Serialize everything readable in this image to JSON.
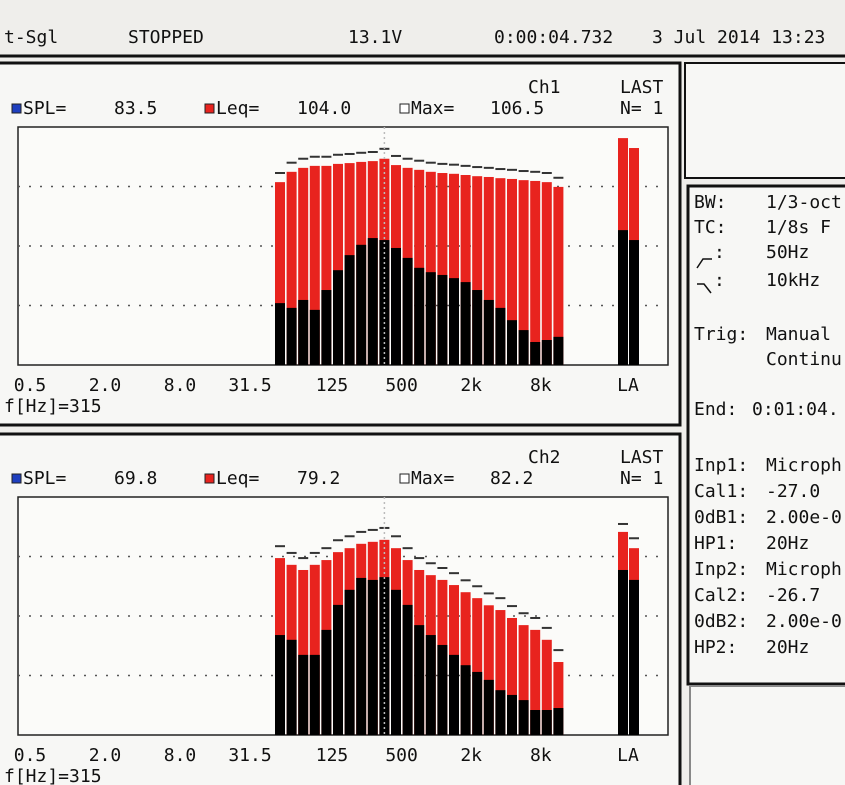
{
  "status_bar": {
    "mode": "t-Sgl",
    "state": "STOPPED",
    "voltage": "13.1V",
    "elapsed": "0:00:04.732",
    "datetime": "3 Jul 2014 13:23"
  },
  "chart_data": [
    {
      "type": "bar",
      "title": "Ch1",
      "status": "LAST",
      "count": "N= 1",
      "cursor": "f[Hz]=315",
      "xtick_labels": [
        "0.5",
        "2.0",
        "8.0",
        "31.5"
      ],
      "categories": [
        null,
        null,
        null,
        null,
        null,
        "125",
        null,
        null,
        null,
        null,
        null,
        "500",
        null,
        null,
        null,
        null,
        null,
        "2k",
        null,
        null,
        null,
        null,
        null,
        "8k",
        null,
        "LA",
        null
      ],
      "series": [
        {
          "name": "SPL=",
          "color": "#000000",
          "marker_color": "#1f3fbf",
          "values": [
            67.6,
            66.4,
            68.4,
            65.9,
            70.9,
            75.9,
            79.7,
            82.3,
            84.0,
            83.5,
            81.5,
            79.0,
            76.5,
            75.4,
            74.7,
            73.9,
            72.9,
            70.9,
            68.4,
            66.4,
            63.3,
            60.8,
            57.8,
            58.3,
            59.1,
            86.0,
            83.5
          ]
        },
        {
          "name": "Leq=",
          "color": "#e8231e",
          "marker_color": "#e8231e",
          "values": [
            98.1,
            100.7,
            101.7,
            102.2,
            102.2,
            102.7,
            102.9,
            103.2,
            103.4,
            104.0,
            102.4,
            101.7,
            101.2,
            100.7,
            100.4,
            100.2,
            99.9,
            99.6,
            99.4,
            99.1,
            98.9,
            98.6,
            98.4,
            98.1,
            96.9,
            109.2,
            106.7
          ]
        },
        {
          "name": "Max=",
          "color": "#333333",
          "marker_color": "#ffffff",
          "values": [
            100.4,
            103.0,
            104.0,
            104.5,
            104.5,
            105.0,
            105.2,
            105.5,
            105.7,
            106.5,
            104.7,
            104.0,
            103.5,
            103.0,
            102.7,
            102.5,
            102.2,
            101.9,
            101.7,
            101.4,
            101.2,
            100.9,
            100.7,
            100.4,
            99.2,
            null,
            null
          ]
        }
      ],
      "readout": [
        "83.5",
        "104.0",
        "106.5"
      ],
      "ylim": [
        52,
        112
      ],
      "grid_lines": [
        67,
        82,
        97
      ]
    },
    {
      "type": "bar",
      "title": "Ch2",
      "status": "LAST",
      "count": "N= 1",
      "cursor": "f[Hz]=315",
      "xtick_labels": [
        "0.5",
        "2.0",
        "8.0",
        "31.5"
      ],
      "categories": [
        null,
        null,
        null,
        null,
        null,
        "125",
        null,
        null,
        null,
        null,
        null,
        "500",
        null,
        null,
        null,
        null,
        null,
        "2k",
        null,
        null,
        null,
        null,
        null,
        "8k",
        null,
        "LA",
        null
      ],
      "series": [
        {
          "name": "SPL=",
          "color": "#000000",
          "marker_color": "#1f3fbf",
          "values": [
            55.2,
            54.0,
            50.2,
            50.2,
            56.5,
            62.8,
            66.6,
            69.6,
            69.1,
            69.8,
            66.6,
            62.8,
            57.7,
            55.2,
            52.7,
            50.2,
            47.6,
            45.9,
            43.9,
            41.3,
            40.1,
            38.8,
            36.3,
            36.3,
            36.8,
            71.6,
            69.1
          ]
        },
        {
          "name": "Leq=",
          "color": "#e8231e",
          "marker_color": "#e8231e",
          "values": [
            74.6,
            72.9,
            71.6,
            72.9,
            74.1,
            76.1,
            77.1,
            78.2,
            78.7,
            79.2,
            77.1,
            74.1,
            71.6,
            70.3,
            69.1,
            67.8,
            66.0,
            64.5,
            62.7,
            61.5,
            59.5,
            57.7,
            56.5,
            54.0,
            48.4,
            81.2,
            77.1
          ]
        },
        {
          "name": "Max=",
          "color": "#333333",
          "marker_color": "#ffffff",
          "values": [
            77.6,
            75.9,
            74.6,
            75.9,
            77.1,
            79.1,
            80.1,
            81.2,
            81.7,
            82.2,
            80.1,
            77.1,
            74.6,
            73.3,
            72.1,
            70.8,
            69.0,
            67.5,
            65.7,
            64.5,
            62.5,
            60.7,
            59.5,
            57.0,
            51.4,
            83.2,
            79.6
          ]
        }
      ],
      "readout": [
        "69.8",
        "79.2",
        "82.2"
      ],
      "ylim": [
        30,
        90
      ],
      "grid_lines": [
        45,
        60,
        75
      ]
    }
  ],
  "info": {
    "rows": [
      {
        "label": "BW:",
        "value": "1/3-oct"
      },
      {
        "label": "TC:",
        "value": "1/8s F"
      },
      {
        "label": ":",
        "value": "50Hz"
      },
      {
        "label": ":",
        "value": "10kHz"
      }
    ],
    "trigger": {
      "label": "Trig:",
      "value": "Manual",
      "mode": "Continu"
    },
    "end": {
      "label": "End:",
      "value": "0:01:04."
    },
    "inputs": [
      {
        "label": "Inp1:",
        "value": "Microph"
      },
      {
        "label": "Cal1:",
        "value": "-27.0"
      },
      {
        "label": "0dB1:",
        "value": "2.00e-0"
      },
      {
        "label": "HP1:",
        "value": "20Hz"
      },
      {
        "label": "Inp2:",
        "value": "Microph"
      },
      {
        "label": "Cal2:",
        "value": "-26.7"
      },
      {
        "label": "0dB2:",
        "value": "2.00e-0"
      },
      {
        "label": "HP2:",
        "value": "20Hz"
      }
    ]
  }
}
